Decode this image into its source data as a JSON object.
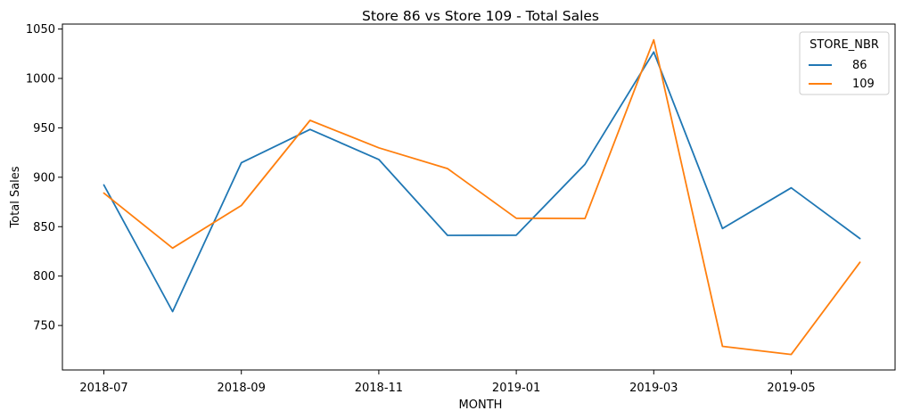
{
  "chart_data": {
    "type": "line",
    "title": "Store 86 vs Store 109 - Total Sales",
    "xlabel": "MONTH",
    "ylabel": "Total Sales",
    "x": [
      "2018-07",
      "2018-08",
      "2018-09",
      "2018-10",
      "2018-11",
      "2018-12",
      "2019-01",
      "2019-02",
      "2019-03",
      "2019-04",
      "2019-05",
      "2019-06"
    ],
    "x_ticks": [
      "2018-07",
      "2018-09",
      "2018-11",
      "2019-01",
      "2019-03",
      "2019-05"
    ],
    "y_ticks": [
      750,
      800,
      850,
      900,
      950,
      1000,
      1050
    ],
    "ylim": [
      705,
      1055
    ],
    "grid": false,
    "legend": {
      "title": "STORE_NBR",
      "placement": "top-right"
    },
    "series": [
      {
        "name": "86",
        "color": "#1f77b4",
        "values": [
          892.2,
          764.1,
          914.6,
          948.4,
          918.0,
          841.2,
          841.4,
          913.2,
          1026.8,
          848.2,
          889.3,
          838.0
        ]
      },
      {
        "name": "109",
        "color": "#ff7f0e",
        "values": [
          884.0,
          828.3,
          871.4,
          957.6,
          929.8,
          908.8,
          858.5,
          858.3,
          1039.0,
          728.9,
          720.7,
          814.0
        ]
      }
    ]
  }
}
